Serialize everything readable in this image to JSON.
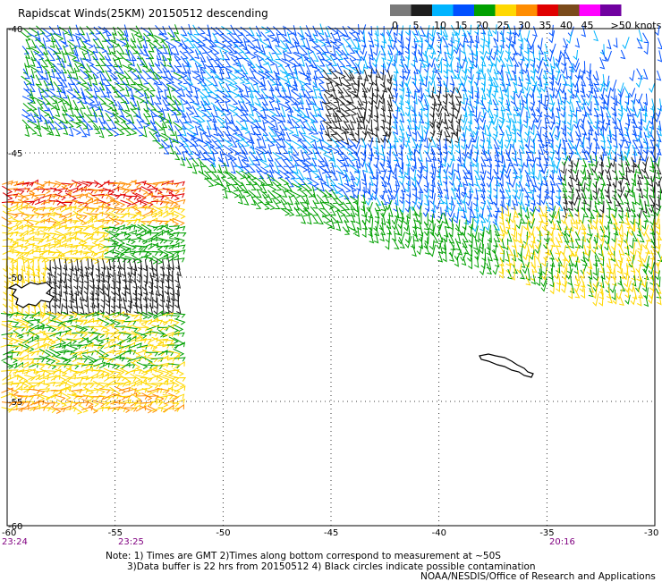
{
  "header": {
    "title": "Rapidscat Winds(25KM) 20150512 descending"
  },
  "legend": {
    "unit_label": ">50 knots",
    "bins": [
      {
        "label": "0",
        "color": "#7a7a7a"
      },
      {
        "label": "5",
        "color": "#1e1e1e"
      },
      {
        "label": "10",
        "color": "#00b4ff"
      },
      {
        "label": "15",
        "color": "#0050ff"
      },
      {
        "label": "20",
        "color": "#00a000"
      },
      {
        "label": "25",
        "color": "#ffd800"
      },
      {
        "label": "30",
        "color": "#ff8c00"
      },
      {
        "label": "35",
        "color": "#e00000"
      },
      {
        "label": "40",
        "color": "#7a4a1a"
      },
      {
        "label": "45",
        "color": "#ff00ff"
      },
      {
        "label": "",
        "color": "#7000a0"
      }
    ]
  },
  "axes": {
    "y_labels": [
      "-40",
      "-45",
      "-50",
      "-55",
      "-60"
    ],
    "x_labels": [
      "-60",
      "-55",
      "-50",
      "-45",
      "-40",
      "-35",
      "-30"
    ],
    "lon_range": [
      -60,
      -30
    ],
    "lat_range": [
      -60,
      -40
    ]
  },
  "times": {
    "left": "23:24",
    "mid": "23:25",
    "right": "20:16",
    "color": "#800080"
  },
  "footer": {
    "line1": "Note: 1) Times are GMT 2)Times along bottom correspond to measurement at ~50S",
    "line2": "3)Data buffer is 22 hrs from 20150512 4) Black circles indicate possible contamination",
    "line3": "NOAA/NESDIS/Office of Research and Applications"
  }
}
